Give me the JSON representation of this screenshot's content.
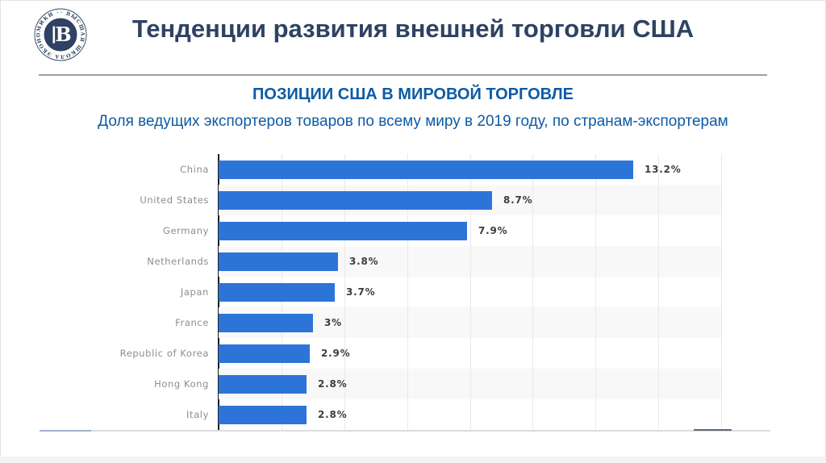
{
  "slide": {
    "title": "Тенденции развития внешней торговли США",
    "subtitle": "ПОЗИЦИИ США В МИРОВОЙ ТОРГОВЛЕ",
    "subtitle2": "Доля ведущих экспортеров товаров по всему миру в 2019 году, по странам-экспортерам"
  },
  "logo": {
    "ring_text": "· ВЫСШАЯ ШКОЛА ЭКОНОМИКИ · ВЫСШАЯ ШКОЛА ЭКОНОМИКИ",
    "monogram": "В"
  },
  "colors": {
    "title_navy": "#2e4263",
    "subtitle_blue": "#0d5ba4",
    "bar_blue": "#2d74d9",
    "category_label_gray": "#8d8d8d",
    "value_label_dark": "#3d3d3d"
  },
  "chart_data": {
    "type": "bar",
    "orientation": "horizontal",
    "title": "ПОЗИЦИИ США В МИРОВОЙ ТОРГОВЛЕ",
    "subtitle": "Доля ведущих экспортеров товаров по всему миру в 2019 году, по странам-экспортерам",
    "categories": [
      "China",
      "United States",
      "Germany",
      "Netherlands",
      "Japan",
      "France",
      "Republic of Korea",
      "Hong Kong",
      "Italy"
    ],
    "values": [
      13.2,
      8.7,
      7.9,
      3.8,
      3.7,
      3,
      2.9,
      2.8,
      2.8
    ],
    "value_labels": [
      "13.2%",
      "8.7%",
      "7.9%",
      "3.8%",
      "3.7%",
      "3%",
      "2.9%",
      "2.8%",
      "2.8%"
    ],
    "xlabel": "",
    "ylabel": "",
    "xlim": [
      0,
      16
    ],
    "gridline_step": 2,
    "grid": true,
    "legend": false,
    "bar_color": "#2d74d9"
  }
}
